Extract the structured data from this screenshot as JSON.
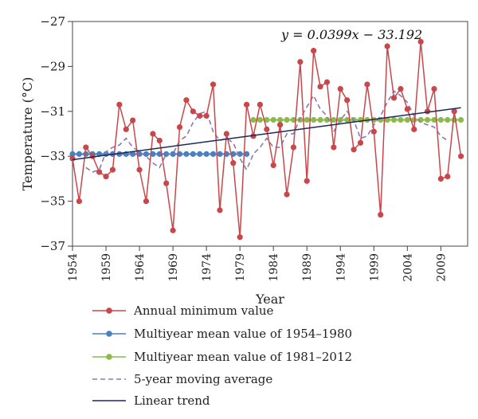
{
  "chart_data": {
    "type": "line",
    "xlabel": "Year",
    "ylabel": "Temperature (°C)",
    "xlim": [
      1954,
      2013
    ],
    "ylim": [
      -37,
      -27
    ],
    "y_ticks": [
      -27,
      -29,
      -31,
      -33,
      -35,
      -37
    ],
    "x_ticks": [
      1954,
      1959,
      1964,
      1969,
      1974,
      1979,
      1984,
      1989,
      1994,
      1999,
      2004,
      2009
    ],
    "annotation": "y = 0.0399x − 33.192",
    "grid": false,
    "legend_placement": "bottom",
    "series": [
      {
        "name": "Annual minimum value",
        "color": "#c9474a",
        "style": "line-markers",
        "x": [
          1954,
          1955,
          1956,
          1957,
          1958,
          1959,
          1960,
          1961,
          1962,
          1963,
          1964,
          1965,
          1966,
          1967,
          1968,
          1969,
          1970,
          1971,
          1972,
          1973,
          1974,
          1975,
          1976,
          1977,
          1978,
          1979,
          1980,
          1981,
          1982,
          1983,
          1984,
          1985,
          1986,
          1987,
          1988,
          1989,
          1990,
          1991,
          1992,
          1993,
          1994,
          1995,
          1996,
          1997,
          1998,
          1999,
          2000,
          2001,
          2002,
          2003,
          2004,
          2005,
          2006,
          2007,
          2008,
          2009,
          2010,
          2011,
          2012
        ],
        "values": [
          -33.1,
          -35.0,
          -32.6,
          -33.0,
          -33.7,
          -33.9,
          -33.6,
          -30.7,
          -31.8,
          -31.4,
          -33.6,
          -35.0,
          -32.0,
          -32.3,
          -34.2,
          -36.3,
          -31.7,
          -30.5,
          -31.0,
          -31.2,
          -31.2,
          -29.8,
          -35.4,
          -32.0,
          -33.3,
          -36.6,
          -30.7,
          -32.1,
          -30.7,
          -31.8,
          -33.4,
          -31.6,
          -34.7,
          -32.6,
          -28.8,
          -34.1,
          -28.3,
          -29.9,
          -29.7,
          -32.6,
          -30.0,
          -30.5,
          -32.7,
          -32.4,
          -29.8,
          -31.9,
          -35.6,
          -28.1,
          -30.4,
          -30.0,
          -30.9,
          -31.8,
          -27.9,
          -31.0,
          -30.0,
          -34.0,
          -33.9,
          -31.0,
          -33.0
        ]
      },
      {
        "name": "Multiyear mean value of 1954–1980",
        "color": "#4a7fc0",
        "style": "markers",
        "x_range": [
          1954,
          1980
        ],
        "value": -32.9
      },
      {
        "name": "Multiyear mean value of 1981–2012",
        "color": "#8cba4a",
        "style": "markers",
        "x_range": [
          1981,
          2012
        ],
        "value": -31.38
      },
      {
        "name": "5-year moving average",
        "color": "#8878b8",
        "style": "dashed",
        "x": [
          1956,
          1957,
          1958,
          1959,
          1960,
          1961,
          1962,
          1963,
          1964,
          1965,
          1966,
          1967,
          1968,
          1969,
          1970,
          1971,
          1972,
          1973,
          1974,
          1975,
          1976,
          1977,
          1978,
          1979,
          1980,
          1981,
          1982,
          1983,
          1984,
          1985,
          1986,
          1987,
          1988,
          1989,
          1990,
          1991,
          1992,
          1993,
          1994,
          1995,
          1996,
          1997,
          1998,
          1999,
          2000,
          2001,
          2002,
          2003,
          2004,
          2005,
          2006,
          2007,
          2008,
          2009,
          2010
        ],
        "values": [
          -33.5,
          -33.7,
          -33.6,
          -32.8,
          -32.6,
          -32.5,
          -32.2,
          -32.6,
          -32.8,
          -33.0,
          -33.3,
          -33.5,
          -32.9,
          -32.9,
          -32.3,
          -32.1,
          -31.5,
          -31.1,
          -31.0,
          -31.9,
          -32.3,
          -32.2,
          -32.4,
          -33.1,
          -33.6,
          -32.9,
          -32.6,
          -32.2,
          -32.6,
          -32.6,
          -32.0,
          -32.0,
          -31.3,
          -30.8,
          -30.3,
          -30.9,
          -31.2,
          -31.9,
          -31.4,
          -31.0,
          -31.4,
          -32.2,
          -32.1,
          -31.6,
          -31.2,
          -30.6,
          -30.1,
          -30.3,
          -30.6,
          -31.2,
          -31.5,
          -31.6,
          -31.7,
          -32.1,
          -32.3
        ]
      },
      {
        "name": "Linear trend",
        "color": "#1c2a55",
        "style": "line",
        "slope": 0.0399,
        "intercept": -33.192
      }
    ]
  }
}
